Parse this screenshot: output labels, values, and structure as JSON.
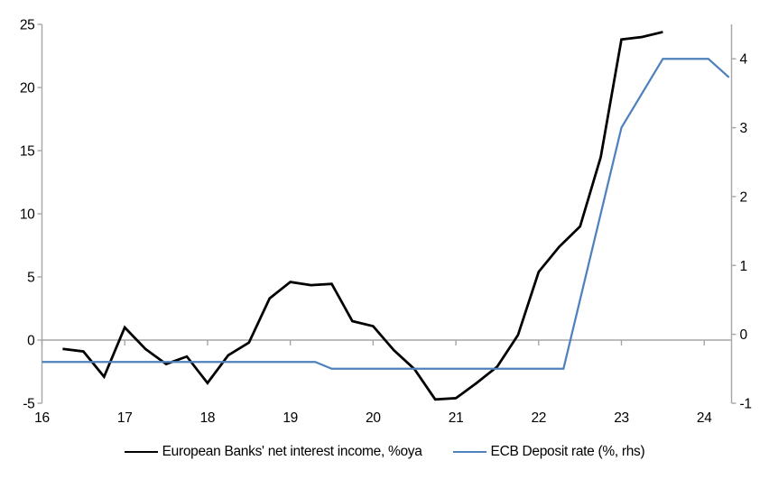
{
  "chart_data": {
    "type": "line",
    "title": "",
    "legend_position": "bottom",
    "grid": "zero-line-only",
    "colors": {
      "axis": "#A6A6A6",
      "text": "#000000",
      "background": "#FFFFFF"
    },
    "x_axis": {
      "min": 16,
      "max": 24.33,
      "ticks": [
        {
          "value": 16,
          "label": "16"
        },
        {
          "value": 17,
          "label": "17"
        },
        {
          "value": 18,
          "label": "18"
        },
        {
          "value": 19,
          "label": "19"
        },
        {
          "value": 20,
          "label": "20"
        },
        {
          "value": 21,
          "label": "21"
        },
        {
          "value": 22,
          "label": "22"
        },
        {
          "value": 23,
          "label": "23"
        },
        {
          "value": 24,
          "label": "24"
        }
      ]
    },
    "y_left": {
      "min": -5,
      "max": 25,
      "ticks": [
        {
          "value": 25,
          "label": "25"
        },
        {
          "value": 20,
          "label": "20"
        },
        {
          "value": 15,
          "label": "15"
        },
        {
          "value": 10,
          "label": "10"
        },
        {
          "value": 5,
          "label": "5"
        },
        {
          "value": 0,
          "label": "0"
        },
        {
          "value": -5,
          "label": "-5"
        }
      ]
    },
    "y_right": {
      "min": -1,
      "max": 4.5,
      "ticks": [
        {
          "value": 4,
          "label": "4"
        },
        {
          "value": 3,
          "label": "3"
        },
        {
          "value": 2,
          "label": "2"
        },
        {
          "value": 1,
          "label": "1"
        },
        {
          "value": 0,
          "label": "0"
        },
        {
          "value": -1,
          "label": "-1"
        }
      ]
    },
    "series": [
      {
        "name": "European Banks' net interest income, %oya",
        "axis": "left",
        "color": "#000000",
        "points": [
          [
            16.25,
            -0.7
          ],
          [
            16.5,
            -0.9
          ],
          [
            16.75,
            -2.9
          ],
          [
            17.0,
            1.0
          ],
          [
            17.25,
            -0.7
          ],
          [
            17.5,
            -1.9
          ],
          [
            17.75,
            -1.3
          ],
          [
            18.0,
            -3.4
          ],
          [
            18.25,
            -1.2
          ],
          [
            18.5,
            -0.2
          ],
          [
            18.75,
            3.3
          ],
          [
            19.0,
            4.6
          ],
          [
            19.25,
            4.35
          ],
          [
            19.5,
            4.45
          ],
          [
            19.75,
            1.5
          ],
          [
            20.0,
            1.1
          ],
          [
            20.25,
            -0.8
          ],
          [
            20.5,
            -2.3
          ],
          [
            20.75,
            -4.7
          ],
          [
            21.0,
            -4.6
          ],
          [
            21.25,
            -3.4
          ],
          [
            21.5,
            -2.1
          ],
          [
            21.75,
            0.4
          ],
          [
            22.0,
            5.4
          ],
          [
            22.25,
            7.4
          ],
          [
            22.5,
            9.0
          ],
          [
            22.75,
            14.5
          ],
          [
            23.0,
            23.8
          ],
          [
            23.25,
            24.0
          ],
          [
            23.5,
            24.4
          ]
        ]
      },
      {
        "name": "ECB Deposit rate (%, rhs)",
        "axis": "right",
        "color": "#4F81BD",
        "points": [
          [
            16.0,
            -0.4
          ],
          [
            19.3,
            -0.4
          ],
          [
            19.5,
            -0.5
          ],
          [
            22.3,
            -0.5
          ],
          [
            23.0,
            3.0
          ],
          [
            23.5,
            4.0
          ],
          [
            24.05,
            4.0
          ],
          [
            24.3,
            3.73
          ]
        ]
      }
    ]
  }
}
